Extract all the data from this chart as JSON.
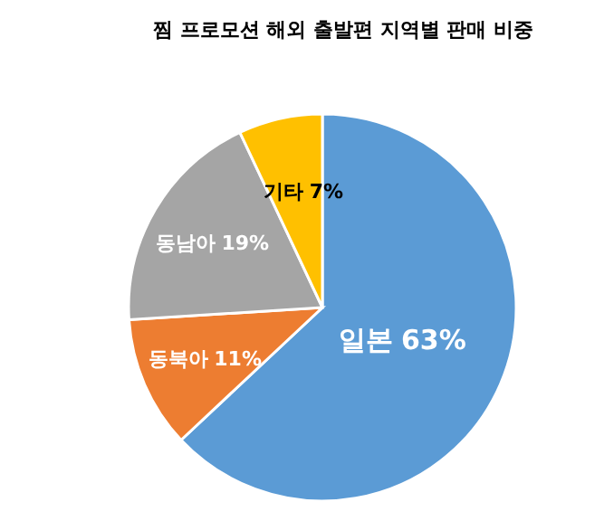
{
  "chart_data": {
    "type": "pie",
    "title": "찜 프로모션 해외 출발편 지역별 판매 비중",
    "categories": [
      "일본",
      "동북아",
      "동남아",
      "기타"
    ],
    "values": [
      63,
      11,
      19,
      7
    ],
    "colors": [
      "#5b9bd5",
      "#ed7d31",
      "#a5a5a5",
      "#ffc000"
    ],
    "value_labels": [
      "63%",
      "11%",
      "19%",
      "7%"
    ]
  }
}
